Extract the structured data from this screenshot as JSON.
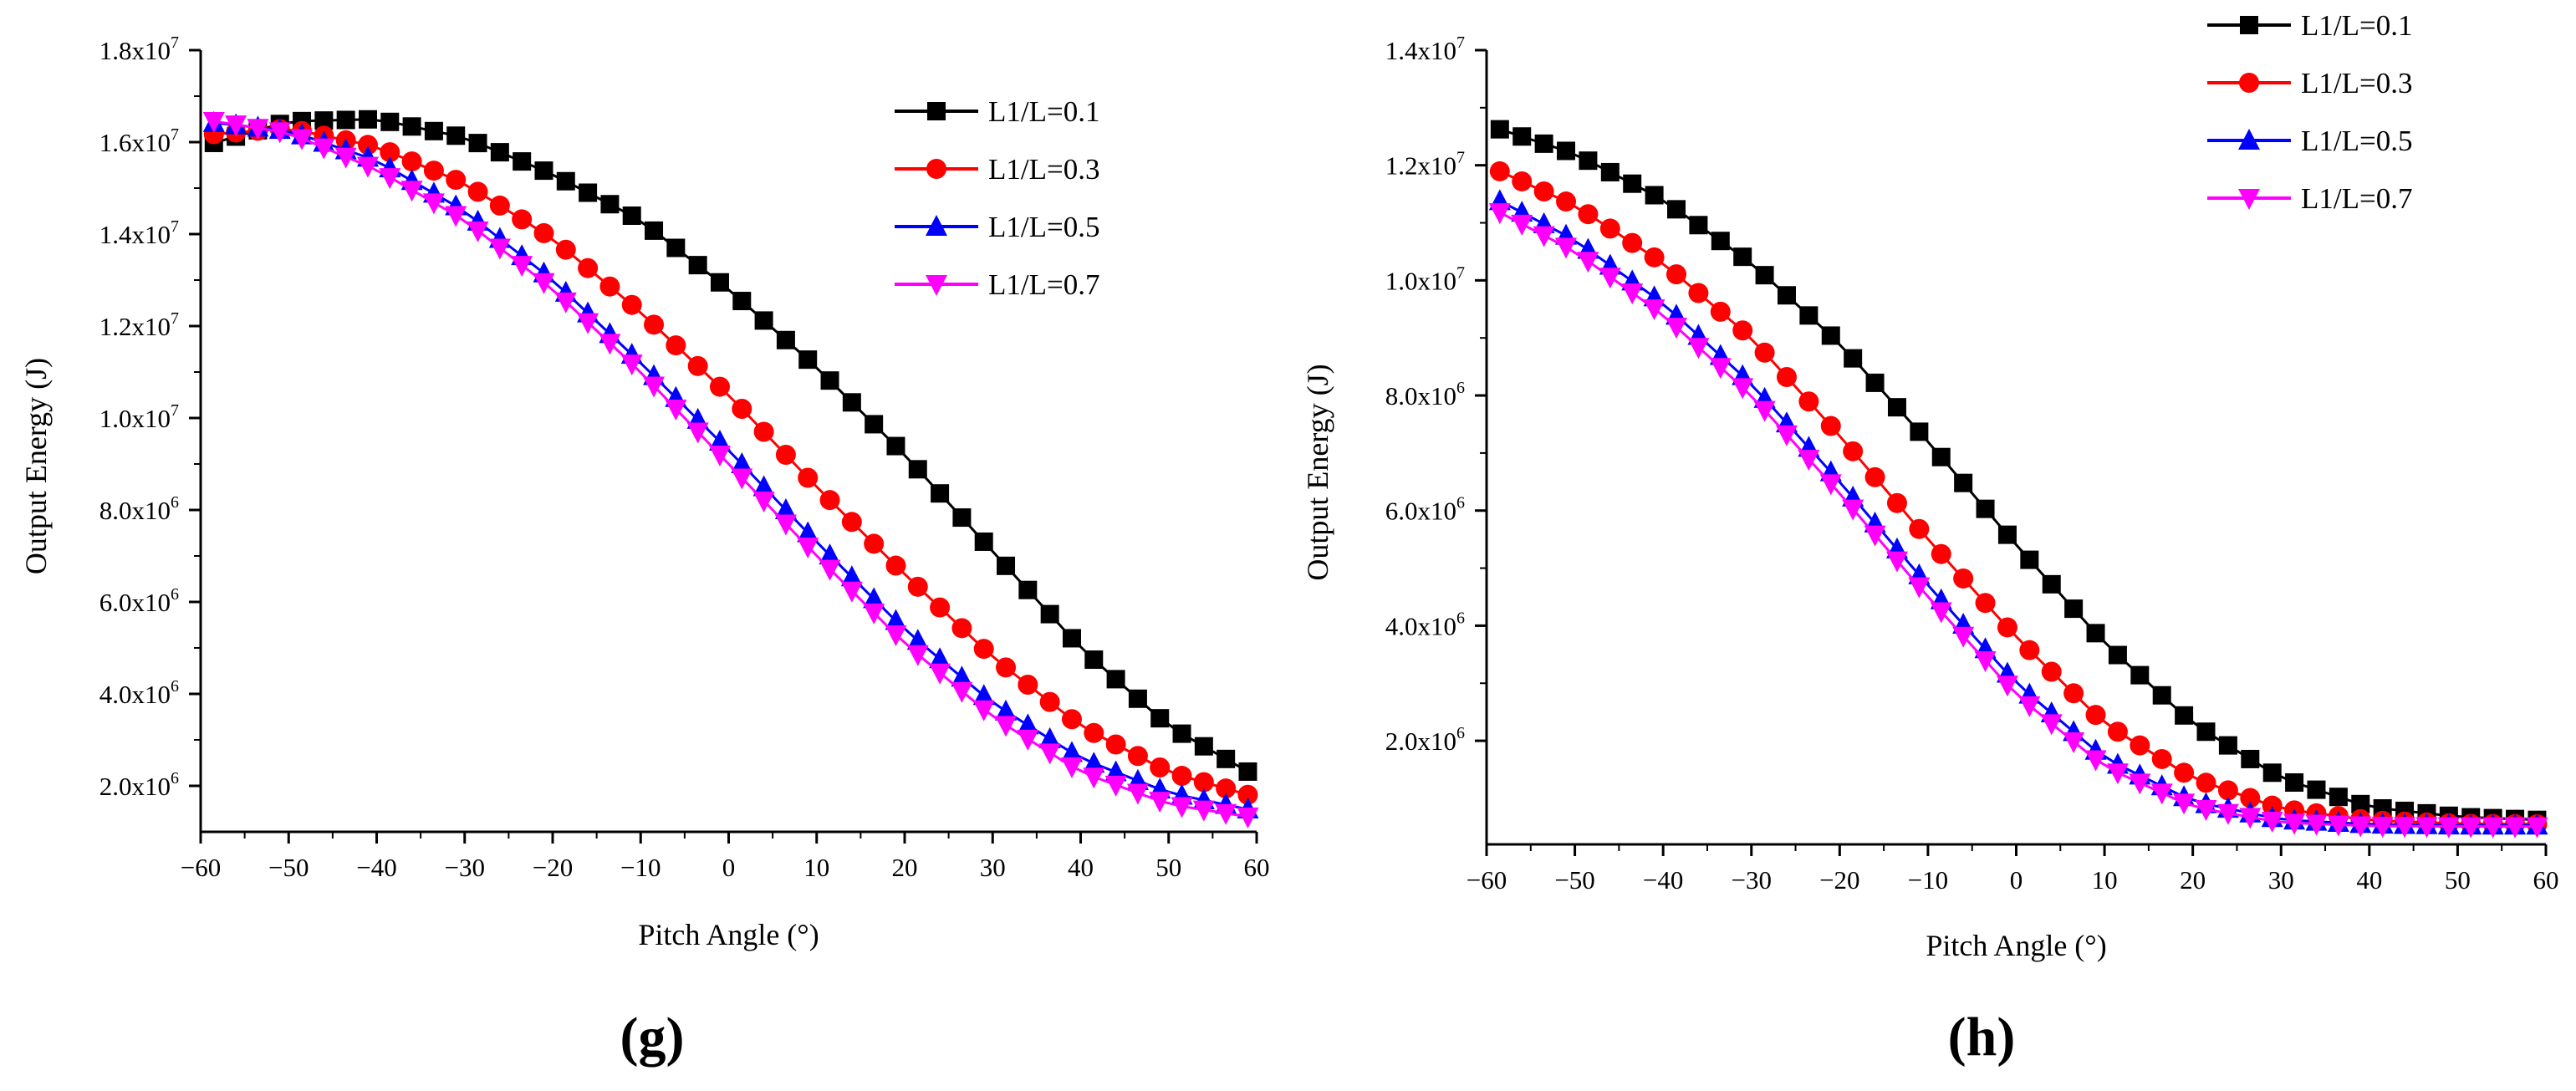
{
  "chart_data": [
    {
      "type": "line",
      "panel_label": "(g)",
      "xlabel": "Pitch Angle (°)",
      "ylabel": "Output Energy (J)",
      "xlim": [
        -60,
        60
      ],
      "ylim": [
        1000000.0,
        18000000.0
      ],
      "x_ticks": [
        -60,
        -50,
        -40,
        -30,
        -20,
        -10,
        0,
        10,
        20,
        30,
        40,
        50,
        60
      ],
      "x_tick_labels": [
        "−60",
        "−50",
        "−40",
        "−30",
        "−20",
        "−10",
        "0",
        "10",
        "20",
        "30",
        "40",
        "50",
        "60"
      ],
      "y_ticks": [
        {
          "value": 2000000.0,
          "mant": "2.0x10",
          "exp": "6"
        },
        {
          "value": 4000000.0,
          "mant": "4.0x10",
          "exp": "6"
        },
        {
          "value": 6000000.0,
          "mant": "6.0x10",
          "exp": "6"
        },
        {
          "value": 8000000.0,
          "mant": "8.0x10",
          "exp": "6"
        },
        {
          "value": 10000000.0,
          "mant": "1.0x10",
          "exp": "7"
        },
        {
          "value": 12000000.0,
          "mant": "1.2x10",
          "exp": "7"
        },
        {
          "value": 14000000.0,
          "mant": "1.4x10",
          "exp": "7"
        },
        {
          "value": 16000000.0,
          "mant": "1.6x10",
          "exp": "7"
        },
        {
          "value": 18000000.0,
          "mant": "1.8x10",
          "exp": "7"
        }
      ],
      "series": [
        {
          "name": "L1/L=0.1",
          "marker": "square",
          "color": "#000000",
          "x": [
            -60,
            -50,
            -40,
            -30,
            -20,
            -10,
            0,
            10,
            20,
            30,
            40,
            50,
            60
          ],
          "y": [
            15900000.0,
            16450000.0,
            16500000.0,
            16100000.0,
            15300000.0,
            14300000.0,
            12800000.0,
            11100000.0,
            9200000.0,
            7100000.0,
            5000000.0,
            3300000.0,
            2200000.0
          ]
        },
        {
          "name": "L1/L=0.3",
          "marker": "circle",
          "color": "#ff0000",
          "x": [
            -60,
            -50,
            -40,
            -30,
            -20,
            -10,
            0,
            10,
            20,
            30,
            40,
            50,
            60
          ],
          "y": [
            16150000.0,
            16300000.0,
            15900000.0,
            15100000.0,
            13900000.0,
            12300000.0,
            10500000.0,
            8500000.0,
            6600000.0,
            4800000.0,
            3300000.0,
            2300000.0,
            1750000.0
          ]
        },
        {
          "name": "L1/L=0.5",
          "marker": "triangle-up",
          "color": "#0000ff",
          "x": [
            -60,
            -50,
            -40,
            -30,
            -20,
            -10,
            0,
            10,
            20,
            30,
            40,
            50,
            60
          ],
          "y": [
            16450000.0,
            16250000.0,
            15600000.0,
            14500000.0,
            13000000.0,
            11200000.0,
            9300000.0,
            7300000.0,
            5400000.0,
            3800000.0,
            2600000.0,
            1850000.0,
            1450000.0
          ]
        },
        {
          "name": "L1/L=0.7",
          "marker": "triangle-down",
          "color": "#ff00ff",
          "x": [
            -60,
            -50,
            -40,
            -30,
            -20,
            -10,
            0,
            10,
            20,
            30,
            40,
            50,
            60
          ],
          "y": [
            16500000.0,
            16200000.0,
            15400000.0,
            14300000.0,
            12800000.0,
            11000000.0,
            9000000.0,
            7000000.0,
            5100000.0,
            3500000.0,
            2300000.0,
            1600000.0,
            1300000.0
          ]
        }
      ],
      "legend": {
        "position": "top-right"
      }
    },
    {
      "type": "line",
      "panel_label": "(h)",
      "xlabel": "Pitch Angle (°)",
      "ylabel": "Output Energy (J)",
      "xlim": [
        -60,
        60
      ],
      "ylim": [
        200000.0,
        14000000.0
      ],
      "x_ticks": [
        -60,
        -50,
        -40,
        -30,
        -20,
        -10,
        0,
        10,
        20,
        30,
        40,
        50,
        60
      ],
      "x_tick_labels": [
        "−60",
        "−50",
        "−40",
        "−30",
        "−20",
        "−10",
        "0",
        "10",
        "20",
        "30",
        "40",
        "50",
        "60"
      ],
      "y_ticks": [
        {
          "value": 2000000.0,
          "mant": "2.0x10",
          "exp": "6"
        },
        {
          "value": 4000000.0,
          "mant": "4.0x10",
          "exp": "6"
        },
        {
          "value": 6000000.0,
          "mant": "6.0x10",
          "exp": "6"
        },
        {
          "value": 8000000.0,
          "mant": "8.0x10",
          "exp": "6"
        },
        {
          "value": 10000000.0,
          "mant": "1.0x10",
          "exp": "7"
        },
        {
          "value": 12000000.0,
          "mant": "1.2x10",
          "exp": "7"
        },
        {
          "value": 14000000.0,
          "mant": "1.4x10",
          "exp": "7"
        }
      ],
      "series": [
        {
          "name": "L1/L=0.1",
          "marker": "square",
          "color": "#000000",
          "x": [
            -60,
            -50,
            -40,
            -30,
            -20,
            -10,
            0,
            10,
            20,
            30,
            40,
            50,
            60
          ],
          "y": [
            12700000.0,
            12200000.0,
            11400000.0,
            10300000.0,
            8900000.0,
            7200000.0,
            5400000.0,
            3700000.0,
            2300000.0,
            1350000.0,
            850000.0,
            680000.0,
            620000.0
          ]
        },
        {
          "name": "L1/L=0.3",
          "marker": "circle",
          "color": "#ff0000",
          "x": [
            -60,
            -50,
            -40,
            -30,
            -20,
            -10,
            0,
            10,
            20,
            30,
            40,
            50,
            60
          ],
          "y": [
            12000000.0,
            11300000.0,
            10300000.0,
            9000000.0,
            7300000.0,
            5500000.0,
            3800000.0,
            2300000.0,
            1350000.0,
            820000.0,
            620000.0,
            560000.0,
            550000.0
          ]
        },
        {
          "name": "L1/L=0.5",
          "marker": "triangle-up",
          "color": "#0000ff",
          "x": [
            -60,
            -50,
            -40,
            -30,
            -20,
            -10,
            0,
            10,
            20,
            30,
            40,
            50,
            60
          ],
          "y": [
            11500000.0,
            10700000.0,
            9600000.0,
            8200000.0,
            6500000.0,
            4700000.0,
            3000000.0,
            1700000.0,
            950000.0,
            630000.0,
            550000.0,
            530000.0,
            530000.0
          ]
        },
        {
          "name": "L1/L=0.7",
          "marker": "triangle-down",
          "color": "#ff00ff",
          "x": [
            -60,
            -50,
            -40,
            -30,
            -20,
            -10,
            0,
            10,
            20,
            30,
            40,
            50,
            60
          ],
          "y": [
            11300000.0,
            10500000.0,
            9400000.0,
            8000000.0,
            6300000.0,
            4500000.0,
            2800000.0,
            1550000.0,
            850000.0,
            580000.0,
            520000.0,
            510000.0,
            510000.0
          ]
        }
      ],
      "legend": {
        "position": "top-right"
      }
    }
  ]
}
